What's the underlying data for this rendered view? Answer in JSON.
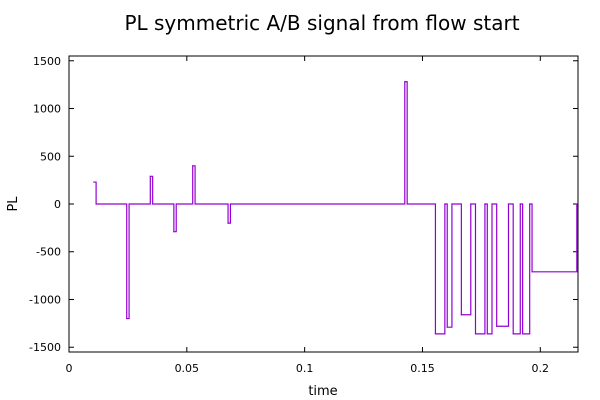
{
  "chart_data": {
    "type": "line",
    "title": "PL symmetric A/B signal from flow start",
    "xlabel": "time",
    "ylabel": "PL",
    "xlim": [
      0,
      0.216
    ],
    "ylim": [
      -1550,
      1550
    ],
    "x_ticks": [
      {
        "value": 0,
        "label": "0"
      },
      {
        "value": 0.05,
        "label": "0.05"
      },
      {
        "value": 0.1,
        "label": "0.1"
      },
      {
        "value": 0.15,
        "label": "0.15"
      },
      {
        "value": 0.2,
        "label": "0.2"
      }
    ],
    "y_ticks": [
      {
        "value": 1500,
        "label": "1500"
      },
      {
        "value": 1000,
        "label": "1000"
      },
      {
        "value": 500,
        "label": "500"
      },
      {
        "value": 0,
        "label": "0"
      },
      {
        "value": -500,
        "label": "-500"
      },
      {
        "value": -1000,
        "label": "-1000"
      },
      {
        "value": -1500,
        "label": "-1500"
      }
    ],
    "grid": false,
    "legend": "none",
    "series": [
      {
        "color": "#9400d3",
        "step": true,
        "x": [
          0.0105,
          0.0115,
          0.0245,
          0.0255,
          0.0345,
          0.0355,
          0.0445,
          0.0455,
          0.0525,
          0.0535,
          0.0675,
          0.0685,
          0.1425,
          0.1435,
          0.1555,
          0.1595,
          0.1605,
          0.1625,
          0.1665,
          0.1705,
          0.1725,
          0.1765,
          0.1775,
          0.1795,
          0.1815,
          0.1865,
          0.1885,
          0.1915,
          0.1925,
          0.1955,
          0.1965,
          0.2155
        ],
        "y": [
          230,
          0,
          -1200,
          0,
          290,
          0,
          -290,
          0,
          400,
          0,
          -200,
          0,
          1280,
          0,
          -1360,
          0,
          -1290,
          0,
          -1160,
          0,
          -1360,
          0,
          -1360,
          0,
          -1280,
          0,
          -1360,
          0,
          -1360,
          0,
          -710,
          0
        ]
      }
    ]
  }
}
